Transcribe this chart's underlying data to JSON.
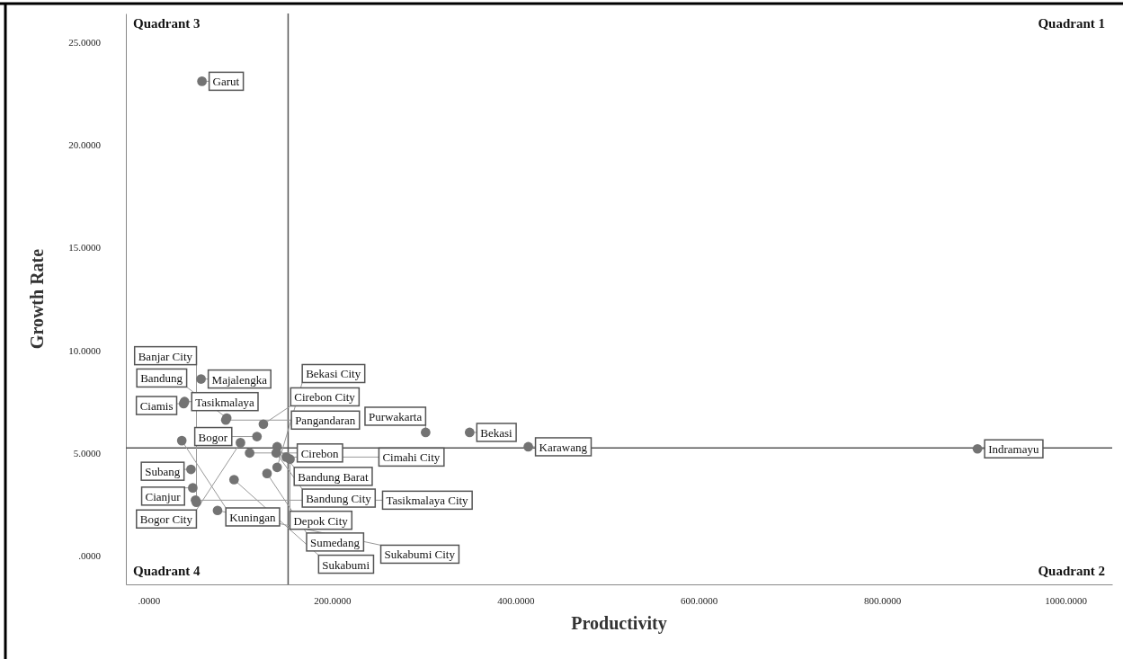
{
  "chart_data": {
    "type": "scatter",
    "xlabel": "Productivity",
    "ylabel": "Growth Rate",
    "series": [
      {
        "name": "Garut",
        "color": "#737373",
        "x": [
          58
        ],
        "values": [
          23.1
        ]
      },
      {
        "name": "Majalengka",
        "color": "#737373",
        "x": [
          57
        ],
        "values": [
          8.6
        ]
      },
      {
        "name": "Tasikmalaya",
        "color": "#737373",
        "x": [
          39
        ],
        "values": [
          7.5
        ]
      },
      {
        "name": "Ciamis",
        "color": "#737373",
        "x": [
          38
        ],
        "values": [
          7.4
        ]
      },
      {
        "name": "Bandung",
        "color": "#737373",
        "x": [
          85
        ],
        "values": [
          6.7
        ]
      },
      {
        "name": "Pangandaran",
        "color": "#737373",
        "x": [
          84
        ],
        "values": [
          6.6
        ]
      },
      {
        "name": "Cirebon City",
        "color": "#737373",
        "x": [
          125
        ],
        "values": [
          6.4
        ]
      },
      {
        "name": "Bogor",
        "color": "#737373",
        "x": [
          118
        ],
        "values": [
          5.8
        ]
      },
      {
        "name": "Cirebon",
        "color": "#737373",
        "x": [
          110
        ],
        "values": [
          5.0
        ]
      },
      {
        "name": "Kuningan",
        "color": "#737373",
        "x": [
          36
        ],
        "values": [
          5.6
        ]
      },
      {
        "name": "Bandung Barat",
        "color": "#737373",
        "x": [
          140
        ],
        "values": [
          5.3
        ]
      },
      {
        "name": "Bandung City",
        "color": "#737373",
        "x": [
          139
        ],
        "values": [
          5.0
        ]
      },
      {
        "name": "Depok City",
        "color": "#737373",
        "x": [
          154
        ],
        "values": [
          4.7
        ]
      },
      {
        "name": "Sumedang",
        "color": "#737373",
        "x": [
          129
        ],
        "values": [
          4.0
        ]
      },
      {
        "name": "Bogor City",
        "color": "#737373",
        "x": [
          100
        ],
        "values": [
          5.5
        ]
      },
      {
        "name": "Subang",
        "color": "#737373",
        "x": [
          46
        ],
        "values": [
          4.2
        ]
      },
      {
        "name": "Cianjur",
        "color": "#737373",
        "x": [
          48
        ],
        "values": [
          3.3
        ]
      },
      {
        "name": "Sukabumi",
        "color": "#737373",
        "x": [
          93
        ],
        "values": [
          3.7
        ]
      },
      {
        "name": "Bekasi City",
        "color": "#737373",
        "x": [
          140
        ],
        "values": [
          4.3
        ]
      },
      {
        "name": "Cimahi City",
        "color": "#737373",
        "x": [
          150
        ],
        "values": [
          4.8
        ]
      },
      {
        "name": "Tasikmalaya City",
        "color": "#737373",
        "x": [
          51
        ],
        "values": [
          2.7
        ]
      },
      {
        "name": "Banjar City",
        "color": "#737373",
        "x": [
          52
        ],
        "values": [
          2.6
        ]
      },
      {
        "name": "Sukabumi City",
        "color": "#737373",
        "x": [
          75
        ],
        "values": [
          2.2
        ]
      },
      {
        "name": "Bekasi",
        "color": "#737373",
        "x": [
          350
        ],
        "values": [
          6.0
        ]
      },
      {
        "name": "Purwakarta",
        "color": "#737373",
        "x": [
          302
        ],
        "values": [
          6.0
        ]
      },
      {
        "name": "Karawang",
        "color": "#737373",
        "x": [
          414
        ],
        "values": [
          5.3
        ]
      },
      {
        "name": "Indramayu",
        "color": "#737373",
        "x": [
          904
        ],
        "values": [
          5.2
        ]
      }
    ],
    "marker": "circle",
    "xlim": [
      -25,
      1051
    ],
    "ylim": [
      -1.4,
      26.4
    ],
    "xticks": [
      {
        "value": 0,
        "label": ".0000"
      },
      {
        "value": 200,
        "label": "200.0000"
      },
      {
        "value": 400,
        "label": "400.0000"
      },
      {
        "value": 600,
        "label": "600.0000"
      },
      {
        "value": 800,
        "label": "800.0000"
      },
      {
        "value": 1000,
        "label": "1000.0000"
      }
    ],
    "yticks": [
      {
        "value": 0,
        "label": ".0000"
      },
      {
        "value": 5,
        "label": "5.0000"
      },
      {
        "value": 10,
        "label": "10.0000"
      },
      {
        "value": 15,
        "label": "15.0000"
      },
      {
        "value": 20,
        "label": "20.0000"
      },
      {
        "value": 25,
        "label": "25.0000"
      }
    ],
    "ref_lines": [
      {
        "axis": "x",
        "value": 152,
        "color": "#555555"
      },
      {
        "axis": "y",
        "value": 5.24,
        "color": "#555555"
      }
    ],
    "annotations": [
      "Quadrant 3",
      "Quadrant 1",
      "Quadrant 4",
      "Quadrant 2"
    ]
  }
}
